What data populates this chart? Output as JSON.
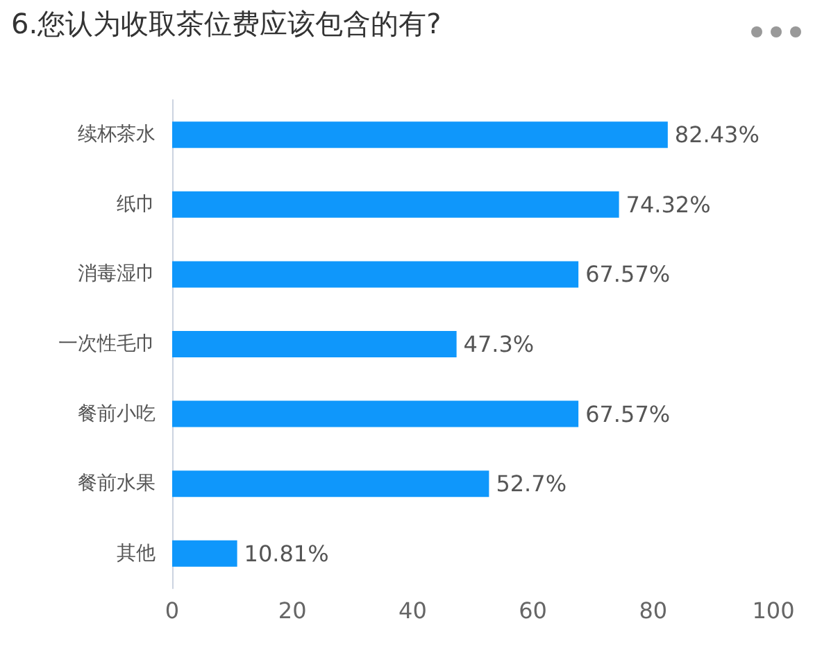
{
  "chart_data": {
    "type": "bar",
    "orientation": "horizontal",
    "title": "6.您认为收取茶位费应该包含的有?",
    "categories": [
      "续杯茶水",
      "纸巾",
      "消毒湿巾",
      "一次性毛巾",
      "餐前小吃",
      "餐前水果",
      "其他"
    ],
    "values": [
      82.43,
      74.32,
      67.57,
      47.3,
      67.57,
      52.7,
      10.81
    ],
    "value_labels": [
      "82.43%",
      "74.32%",
      "67.57%",
      "47.3%",
      "67.57%",
      "52.7%",
      "10.81%"
    ],
    "color": "#0f97fb",
    "xlim": [
      0,
      100
    ],
    "xticks": [
      0,
      20,
      40,
      60,
      80,
      100
    ],
    "grid": false
  }
}
